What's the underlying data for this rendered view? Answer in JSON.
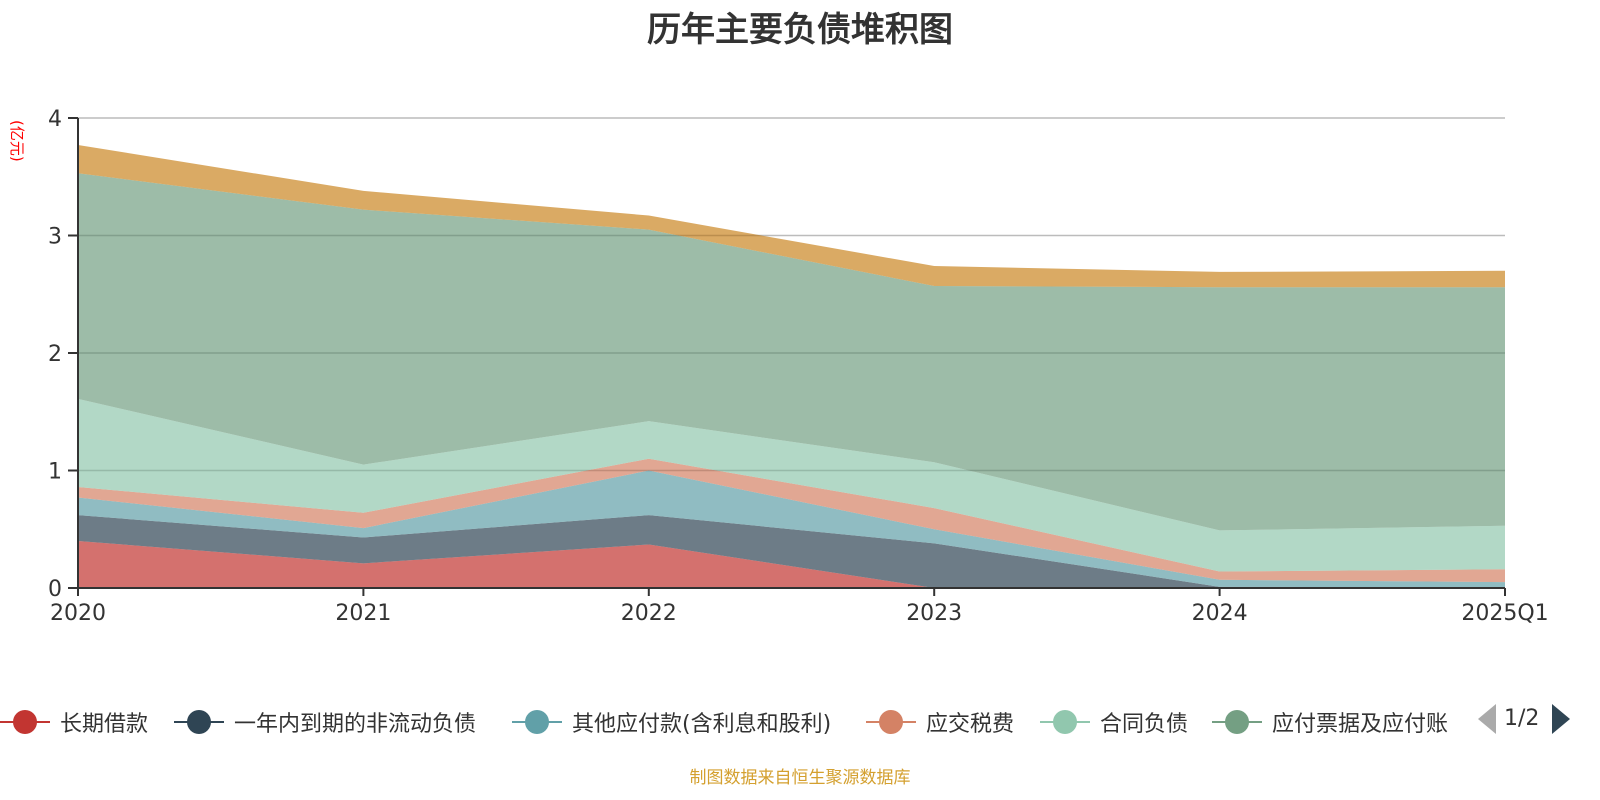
{
  "chart_data": {
    "type": "area",
    "stacked": true,
    "title": "历年主要负债堆积图",
    "ylabel": "(亿元)",
    "xlabel": "",
    "x": [
      "2020",
      "2021",
      "2022",
      "2023",
      "2024",
      "2025Q1"
    ],
    "ylim": [
      0,
      4
    ],
    "yticks": [
      0,
      1,
      2,
      3,
      4
    ],
    "grid": true,
    "legend_position": "bottom",
    "series": [
      {
        "name": "长期借款",
        "color": "#c23531",
        "values": [
          0.4,
          0.21,
          0.37,
          0.0,
          0.0,
          0.0
        ]
      },
      {
        "name": "一年内到期的非流动负债",
        "color": "#2f4554",
        "values": [
          0.22,
          0.22,
          0.25,
          0.38,
          0.01,
          0.005
        ]
      },
      {
        "name": "其他应付款(含利息和股利)",
        "color": "#61a0a8",
        "values": [
          0.15,
          0.08,
          0.38,
          0.12,
          0.06,
          0.045
        ]
      },
      {
        "name": "应交税费",
        "color": "#d48265",
        "values": [
          0.09,
          0.13,
          0.1,
          0.18,
          0.07,
          0.11
        ]
      },
      {
        "name": "合同负债",
        "color": "#91c7ae",
        "values": [
          0.75,
          0.41,
          0.32,
          0.39,
          0.35,
          0.37
        ]
      },
      {
        "name": "应付票据及应付账",
        "color": "#749f83",
        "values": [
          1.92,
          2.17,
          1.63,
          1.5,
          2.07,
          2.03
        ]
      },
      {
        "name": "",
        "color": "#ca8622",
        "values": [
          0.24,
          0.16,
          0.12,
          0.17,
          0.13,
          0.14
        ]
      }
    ]
  },
  "legend": {
    "page": "1/2"
  },
  "source": "制图数据来自恒生聚源数据库"
}
